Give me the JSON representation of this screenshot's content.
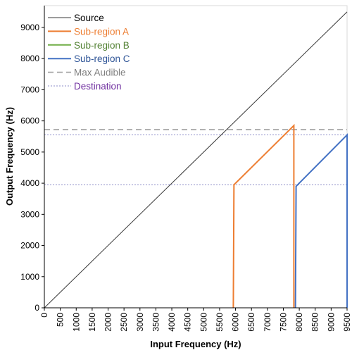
{
  "chart_data": {
    "type": "line",
    "title": "",
    "xlabel": "Input Frequency (Hz)",
    "ylabel": "Output Frequency (Hz)",
    "xlim": [
      0,
      9500
    ],
    "ylim": [
      0,
      9700
    ],
    "x_ticks": [
      0,
      500,
      1000,
      1500,
      2000,
      2500,
      3000,
      3500,
      4000,
      4500,
      5000,
      5500,
      6000,
      6500,
      7000,
      7500,
      8000,
      8500,
      9000,
      9500
    ],
    "y_ticks": [
      0,
      1000,
      2000,
      3000,
      4000,
      5000,
      6000,
      7000,
      8000,
      9000
    ],
    "grid": false,
    "legend_position": "top-left",
    "series": [
      {
        "name": "Source",
        "color": "#3a3a3a",
        "style": "solid",
        "points": [
          [
            0,
            0
          ],
          [
            9500,
            9500
          ]
        ]
      },
      {
        "name": "Sub-region A",
        "color": "#ed7d31",
        "style": "solid",
        "points": [
          [
            5930,
            0
          ],
          [
            5950,
            3950
          ],
          [
            7830,
            5850
          ],
          [
            7830,
            0
          ]
        ]
      },
      {
        "name": "Sub-region B",
        "color": "#70ad47",
        "style": "solid",
        "points": []
      },
      {
        "name": "Sub-region C",
        "color": "#4472c4",
        "style": "solid",
        "points": [
          [
            7880,
            0
          ],
          [
            7900,
            3900
          ],
          [
            9500,
            5550
          ],
          [
            9500,
            0
          ]
        ]
      },
      {
        "name": "Max Audible",
        "color": "#a6a6a6",
        "style": "dashed",
        "points": [
          [
            0,
            5720
          ],
          [
            9500,
            5720
          ]
        ]
      },
      {
        "name": "Destination",
        "color": "#8e8ec8",
        "style": "dotted",
        "points": [
          [
            0,
            5550
          ],
          [
            9500,
            5550
          ]
        ],
        "extra_lines": [
          [
            [
              0,
              3950
            ],
            [
              9500,
              3950
            ]
          ]
        ]
      }
    ],
    "legend_text_colors": {
      "Source": "#000000",
      "Sub-region A": "#ed7d31",
      "Sub-region B": "#548235",
      "Sub-region C": "#2f5597",
      "Max Audible": "#7f7f7f",
      "Destination": "#7030a0"
    }
  }
}
